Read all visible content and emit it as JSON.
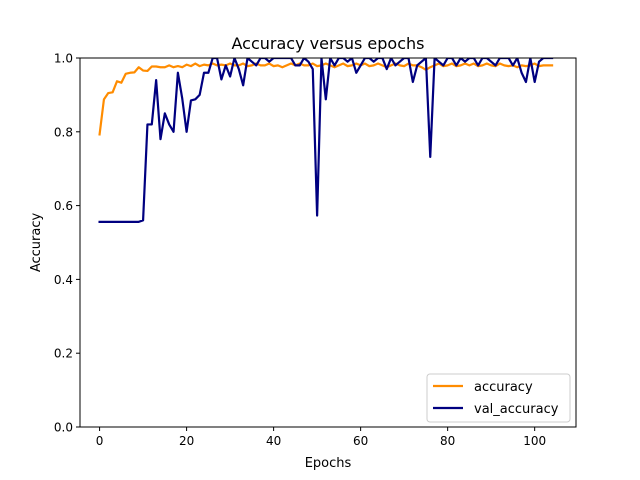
{
  "chart_data": {
    "type": "line",
    "title": "Accuracy versus epochs",
    "xlabel": "Epochs",
    "ylabel": "Accuracy",
    "xlim": [
      -4.5,
      109.5
    ],
    "ylim": [
      0.0,
      1.0
    ],
    "xticks": [
      0,
      20,
      40,
      60,
      80,
      100
    ],
    "yticks": [
      0.0,
      0.2,
      0.4,
      0.6,
      0.8,
      1.0
    ],
    "xtick_labels": [
      "0",
      "20",
      "40",
      "60",
      "80",
      "100"
    ],
    "ytick_labels": [
      "0.0",
      "0.2",
      "0.4",
      "0.6",
      "0.8",
      "1.0"
    ],
    "grid": false,
    "legend_position": "lower right",
    "series": [
      {
        "name": "accuracy",
        "color": "#ff8c00",
        "values": [
          0.793,
          0.888,
          0.905,
          0.907,
          0.937,
          0.933,
          0.957,
          0.96,
          0.961,
          0.975,
          0.966,
          0.965,
          0.977,
          0.977,
          0.975,
          0.975,
          0.98,
          0.975,
          0.978,
          0.975,
          0.982,
          0.978,
          0.985,
          0.978,
          0.982,
          0.98,
          0.985,
          0.98,
          0.982,
          0.98,
          0.985,
          0.98,
          0.98,
          0.985,
          0.978,
          0.98,
          0.985,
          0.98,
          0.98,
          0.985,
          0.978,
          0.98,
          0.975,
          0.98,
          0.985,
          0.98,
          0.985,
          0.98,
          0.98,
          0.985,
          0.978,
          0.98,
          0.985,
          0.98,
          0.975,
          0.98,
          0.985,
          0.978,
          0.98,
          0.985,
          0.98,
          0.985,
          0.978,
          0.98,
          0.985,
          0.98,
          0.975,
          0.98,
          0.985,
          0.98,
          0.978,
          0.985,
          0.98,
          0.98,
          0.975,
          0.968,
          0.975,
          0.98,
          0.985,
          0.978,
          0.98,
          0.985,
          0.978,
          0.98,
          0.985,
          0.98,
          0.985,
          0.978,
          0.98,
          0.985,
          0.98,
          0.978,
          0.985,
          0.98,
          0.978,
          0.98,
          0.975,
          0.98,
          0.978,
          0.98,
          0.985,
          0.978,
          0.98,
          0.98,
          0.98
        ]
      },
      {
        "name": "val_accuracy",
        "color": "#000080",
        "values": [
          0.556,
          0.556,
          0.556,
          0.556,
          0.556,
          0.556,
          0.556,
          0.556,
          0.556,
          0.556,
          0.56,
          0.82,
          0.82,
          0.94,
          0.78,
          0.85,
          0.82,
          0.8,
          0.96,
          0.89,
          0.8,
          0.885,
          0.888,
          0.9,
          0.96,
          0.96,
          1.0,
          1.0,
          0.942,
          0.98,
          0.95,
          1.0,
          0.97,
          0.926,
          1.0,
          0.99,
          0.98,
          1.0,
          1.0,
          0.99,
          1.0,
          1.0,
          1.0,
          1.0,
          1.0,
          0.98,
          0.98,
          1.0,
          0.99,
          0.97,
          0.573,
          1.0,
          0.888,
          1.0,
          0.98,
          1.0,
          1.0,
          0.99,
          1.0,
          0.96,
          0.98,
          1.0,
          1.0,
          0.99,
          1.0,
          1.0,
          0.97,
          1.0,
          0.98,
          0.99,
          1.0,
          1.0,
          0.935,
          0.98,
          0.99,
          1.0,
          0.732,
          1.0,
          0.99,
          0.98,
          1.0,
          1.0,
          0.98,
          1.0,
          0.99,
          1.0,
          1.0,
          0.98,
          1.0,
          1.0,
          0.99,
          0.98,
          1.0,
          1.0,
          1.0,
          0.98,
          1.0,
          0.96,
          0.935,
          1.0,
          0.935,
          0.99,
          1.0,
          1.0,
          1.0
        ]
      }
    ]
  }
}
